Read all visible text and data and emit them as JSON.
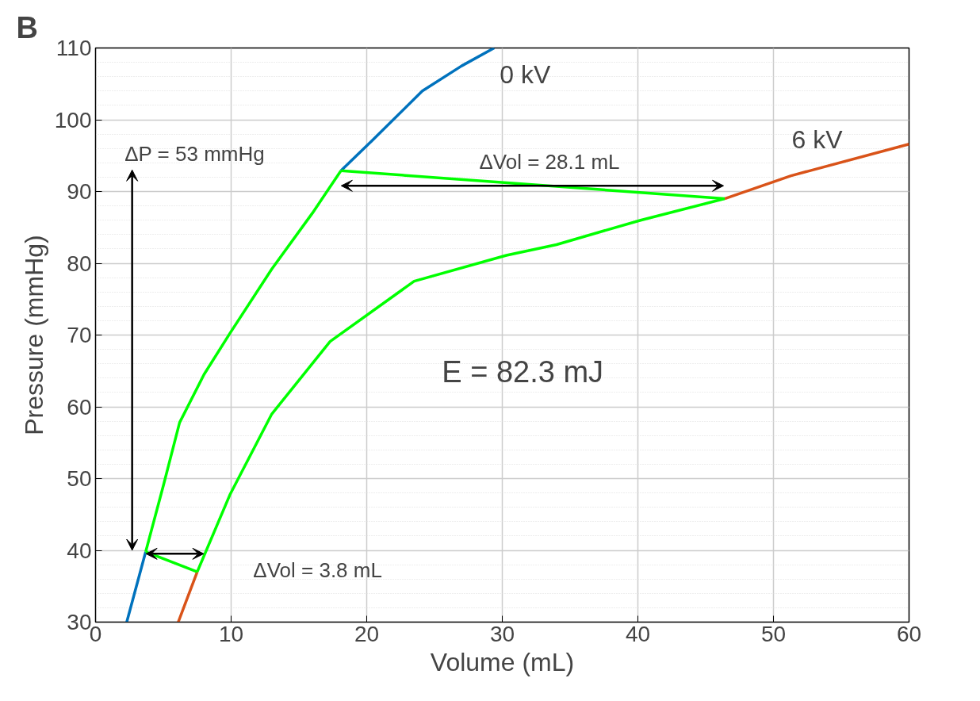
{
  "chart_data": {
    "type": "line",
    "title": "B",
    "xlabel": "Volume (mL)",
    "ylabel": "Pressure (mmHg)",
    "xlim": [
      0,
      60
    ],
    "ylim": [
      30,
      110
    ],
    "xticks": [
      0,
      10,
      20,
      30,
      40,
      50,
      60
    ],
    "yticks": [
      30,
      40,
      50,
      60,
      70,
      80,
      90,
      100,
      110
    ],
    "grid": true,
    "line_style": "solid",
    "marker": "none",
    "series": [
      {
        "color": "#0072bd",
        "x": [
          2.3,
          3.7,
          5,
          6.2,
          8,
          9.9,
          13,
          16,
          18.1,
          20.4,
          24.1,
          27,
          29.4
        ],
        "values": [
          30,
          39.8,
          null,
          null,
          null,
          null,
          null,
          null,
          92.9,
          97.1,
          104,
          107.5,
          110
        ]
      },
      {
        "color": "#d95319",
        "x": [
          6.1,
          7.5,
          9.9,
          13,
          17.3,
          23.5,
          30.3,
          34,
          40.2,
          46.4,
          51.3,
          60
        ],
        "values": [
          30,
          37,
          null,
          null,
          null,
          null,
          null,
          null,
          null,
          89,
          92.2,
          96.6
        ]
      },
      {
        "color": "#00ff00",
        "x": [
          3.7,
          5,
          6.2,
          8,
          9.9,
          13,
          16,
          18.1
        ],
        "values": [
          39.8,
          49,
          57.8,
          64.5,
          70.2,
          79.2,
          87,
          92.9
        ]
      },
      {
        "color": "#00ff00",
        "x": [
          18.1,
          46.4
        ],
        "values": [
          92.9,
          89
        ]
      },
      {
        "color": "#00ff00",
        "x": [
          7.5,
          9.9,
          13,
          17.3,
          23.5,
          30.3,
          34,
          40.2,
          46.4
        ],
        "values": [
          37,
          47.7,
          59,
          69.1,
          77.5,
          81.1,
          82.6,
          86,
          89
        ]
      },
      {
        "color": "#00ff00",
        "x": [
          3.7,
          7.5
        ],
        "values": [
          39.8,
          37
        ]
      }
    ],
    "annotations": [
      "0 kV",
      "6 kV",
      "ΔP = 53 mmHg",
      "ΔVol = 28.1 mL",
      "ΔVol = 3.8 mL",
      "E = 82.3 mJ"
    ]
  }
}
